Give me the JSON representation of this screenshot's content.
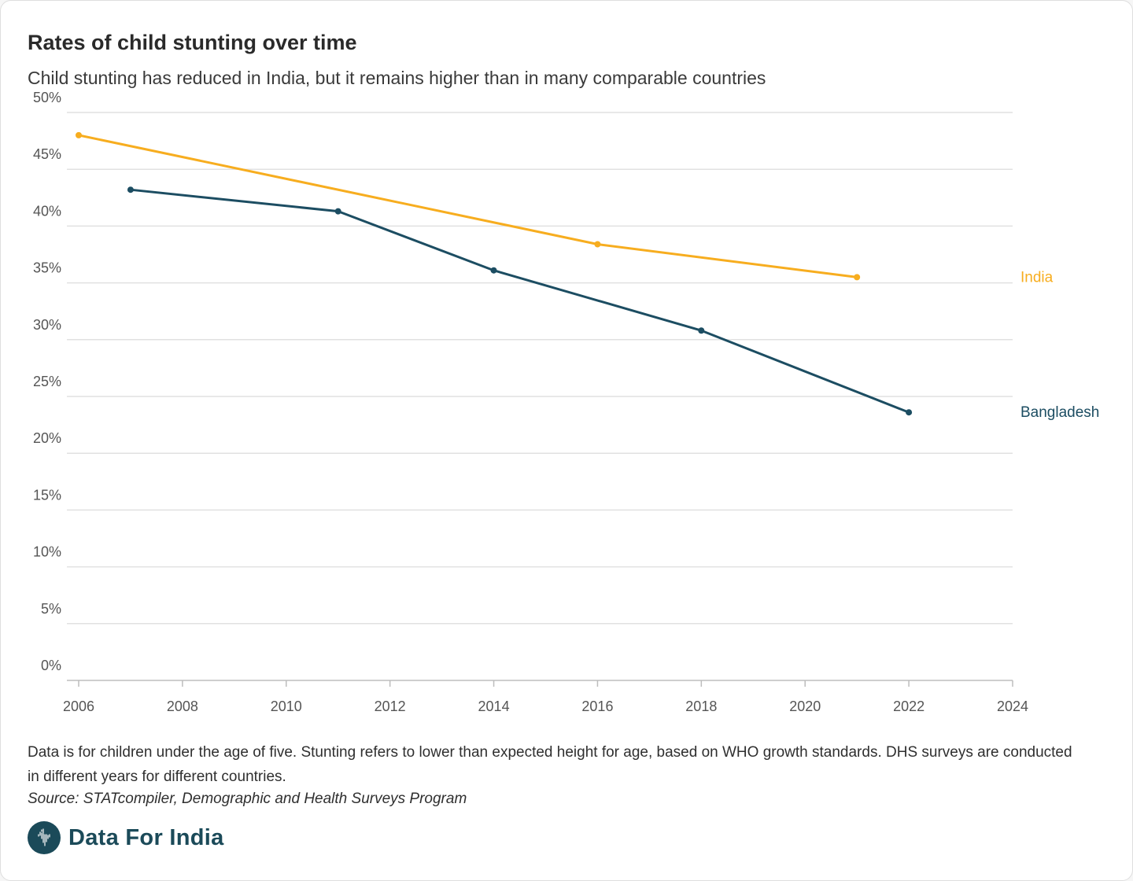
{
  "chart_data": {
    "type": "line",
    "title": "Rates of child stunting over time",
    "subtitle": "Child stunting has reduced in India, but it remains higher than in many comparable countries",
    "xlabel": "",
    "ylabel": "",
    "xlim": [
      2006,
      2024
    ],
    "ylim": [
      0,
      50
    ],
    "x_ticks": [
      2006,
      2008,
      2010,
      2012,
      2014,
      2016,
      2018,
      2020,
      2022,
      2024
    ],
    "y_ticks": [
      0,
      5,
      10,
      15,
      20,
      25,
      30,
      35,
      40,
      45,
      50
    ],
    "y_tick_labels": [
      "0%",
      "5%",
      "10%",
      "15%",
      "20%",
      "25%",
      "30%",
      "35%",
      "40%",
      "45%",
      "50%"
    ],
    "grid": true,
    "legend": "direct labels at line ends (right)",
    "series": [
      {
        "name": "India",
        "color": "#f7ad1f",
        "points": [
          {
            "x": 2006,
            "y": 48.0
          },
          {
            "x": 2016,
            "y": 38.4
          },
          {
            "x": 2021,
            "y": 35.5
          }
        ]
      },
      {
        "name": "Bangladesh",
        "color": "#1c4d62",
        "points": [
          {
            "x": 2007,
            "y": 43.2
          },
          {
            "x": 2011,
            "y": 41.3
          },
          {
            "x": 2014,
            "y": 36.1
          },
          {
            "x": 2018,
            "y": 30.8
          },
          {
            "x": 2022,
            "y": 23.6
          }
        ]
      }
    ]
  },
  "footer": {
    "note": "Data is for children under the age of five. Stunting refers to lower than expected height for age, based on WHO growth standards. DHS surveys are conducted in different years for different countries.",
    "source": "Source: STATcompiler, Demographic and Health Surveys Program"
  },
  "brand": {
    "name": "Data For India",
    "icon": "india-map-icon",
    "color": "#1b4a59"
  }
}
